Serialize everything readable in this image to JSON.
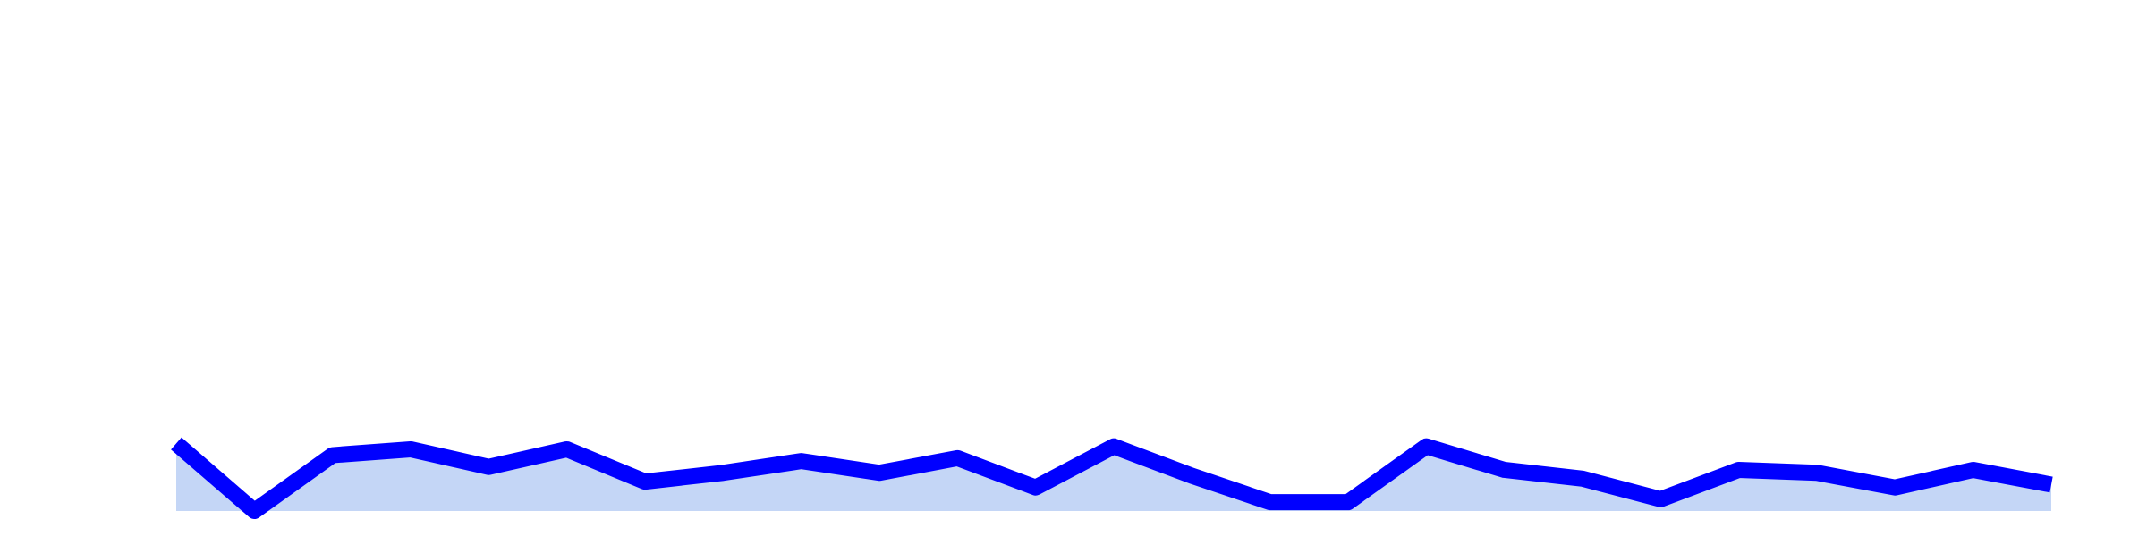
{
  "chart_data": {
    "type": "area",
    "x": [
      1,
      2,
      3,
      4,
      5,
      6,
      7,
      8,
      9,
      10,
      11,
      12,
      13,
      14,
      15,
      16,
      17,
      18,
      19,
      20,
      21,
      22,
      23,
      24,
      25
    ],
    "series": [
      {
        "values": [
          29,
          6,
          25,
          27,
          21,
          27,
          16,
          19,
          23,
          19,
          24,
          14,
          28,
          18,
          9,
          9,
          28,
          20,
          17,
          10,
          20,
          19,
          14,
          20,
          15
        ]
      }
    ],
    "ylim": [
      6,
      180
    ],
    "grid": false,
    "legend": "none",
    "colors": {
      "line": "#0000ff",
      "fill": "#c4d6f6"
    }
  }
}
